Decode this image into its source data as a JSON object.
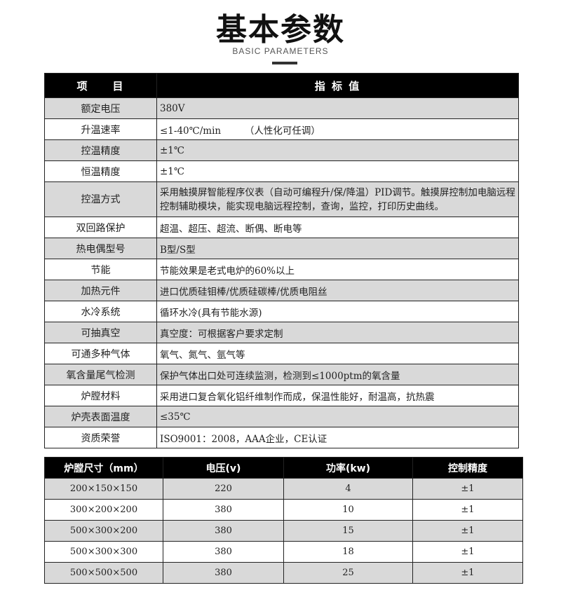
{
  "heading": {
    "title": "基本参数",
    "subtitle": "BASIC PARAMETERS"
  },
  "params": {
    "headers": [
      "项　　目",
      "指 标 值"
    ],
    "rows": [
      {
        "label": "额定电压",
        "value": "380V"
      },
      {
        "label": "升温速率",
        "value": "≤1-40℃/min　　　（人性化可任调）"
      },
      {
        "label": "控温精度",
        "value": "±1℃"
      },
      {
        "label": "恒温精度",
        "value": "±1℃"
      },
      {
        "label": "控温方式",
        "value": "采用触摸屏智能程序仪表（自动可编程升/保/降温）PID调节。触摸屏控制加电脑远程控制辅助模块，能实现电脑远程控制，查询，监控，打印历史曲线。"
      },
      {
        "label": "双回路保护",
        "value": "超温、超压、超流、断偶、断电等"
      },
      {
        "label": "热电偶型号",
        "value": "B型/S型"
      },
      {
        "label": "节能",
        "value": "节能效果是老式电炉的60%以上"
      },
      {
        "label": "加热元件",
        "value": "进口优质硅钼棒/优质硅碳棒/优质电阻丝"
      },
      {
        "label": "水冷系统",
        "value": "循环水冷(具有节能水源)"
      },
      {
        "label": "可抽真空",
        "value": "真空度：可根据客户要求定制"
      },
      {
        "label": "可通多种气体",
        "value": "氧气、氮气、氩气等"
      },
      {
        "label": "氧含量尾气检测",
        "value": "保护气体出口处可连续监测，检测到≤1000ptm的氧含量"
      },
      {
        "label": "炉膛材料",
        "value": "采用进口复合氧化铝纤维制作而成，保温性能好，耐温高，抗热震"
      },
      {
        "label": "炉壳表面温度",
        "value": "≤35℃"
      },
      {
        "label": "资质荣誉",
        "value": "ISO9001：2008，AAA企业，CE认证"
      }
    ]
  },
  "models": {
    "headers": [
      "炉膛尺寸（mm）",
      "电压(v)",
      "功率(kw)",
      "控制精度"
    ],
    "rows": [
      [
        "200×150×150",
        "220",
        "4",
        "±1"
      ],
      [
        "300×200×200",
        "380",
        "10",
        "±1"
      ],
      [
        "500×300×200",
        "380",
        "15",
        "±1"
      ],
      [
        "500×300×300",
        "380",
        "18",
        "±1"
      ],
      [
        "500×500×500",
        "380",
        "25",
        "±1"
      ]
    ]
  }
}
